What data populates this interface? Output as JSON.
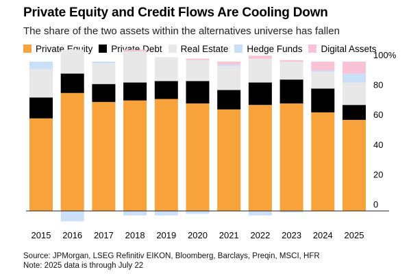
{
  "colors": {
    "Private Equity": "#F7A23A",
    "Private Debt": "#000000",
    "Real Estate": "#E8E8E8",
    "Hedge Funds": "#C9E0F8",
    "Digital Assets": "#F9C2D6"
  },
  "chart_data": {
    "type": "bar",
    "stacked": true,
    "title": "Private Equity and Credit Flows Are Cooling Down",
    "subtitle": "The share of the two assets within the alternatives universe has fallen",
    "categories": [
      "2015",
      "2016",
      "2017",
      "2018",
      "2019",
      "2020",
      "2021",
      "2022",
      "2023",
      "2024",
      "2025"
    ],
    "series": [
      {
        "name": "Private Equity",
        "values": [
          62,
          79,
          73,
          74,
          75,
          72,
          68,
          71,
          72,
          66,
          61
        ]
      },
      {
        "name": "Private Debt",
        "values": [
          14,
          13,
          12,
          12,
          12,
          15,
          13,
          15,
          16,
          16,
          10
        ]
      },
      {
        "name": "Real Estate",
        "values": [
          19,
          16,
          14,
          21,
          16,
          14,
          16,
          16,
          12,
          11,
          15
        ]
      },
      {
        "name": "Hedge Funds",
        "values": [
          5,
          -7,
          1,
          -3,
          -3,
          -2,
          1,
          -3,
          -1,
          1,
          6
        ]
      },
      {
        "name": "Digital Assets",
        "values": [
          0,
          0,
          0,
          1,
          0,
          1,
          2,
          2,
          1,
          6,
          8
        ]
      }
    ],
    "ylim": [
      -7,
      102
    ],
    "yticks": [
      0,
      20,
      40,
      60,
      80,
      100
    ],
    "ytick_labels": [
      "0",
      "20",
      "40",
      "60",
      "80",
      "100%"
    ],
    "ylabel": "",
    "xlabel": "",
    "legend_position": "top",
    "grid": false
  },
  "footer": {
    "source": "Source: JPMorgan, LSEG Refinitiv EIKON, Bloomberg, Barclays, Preqin, MSCI, HFR",
    "note": "Note: 2025 data is through July 22"
  }
}
